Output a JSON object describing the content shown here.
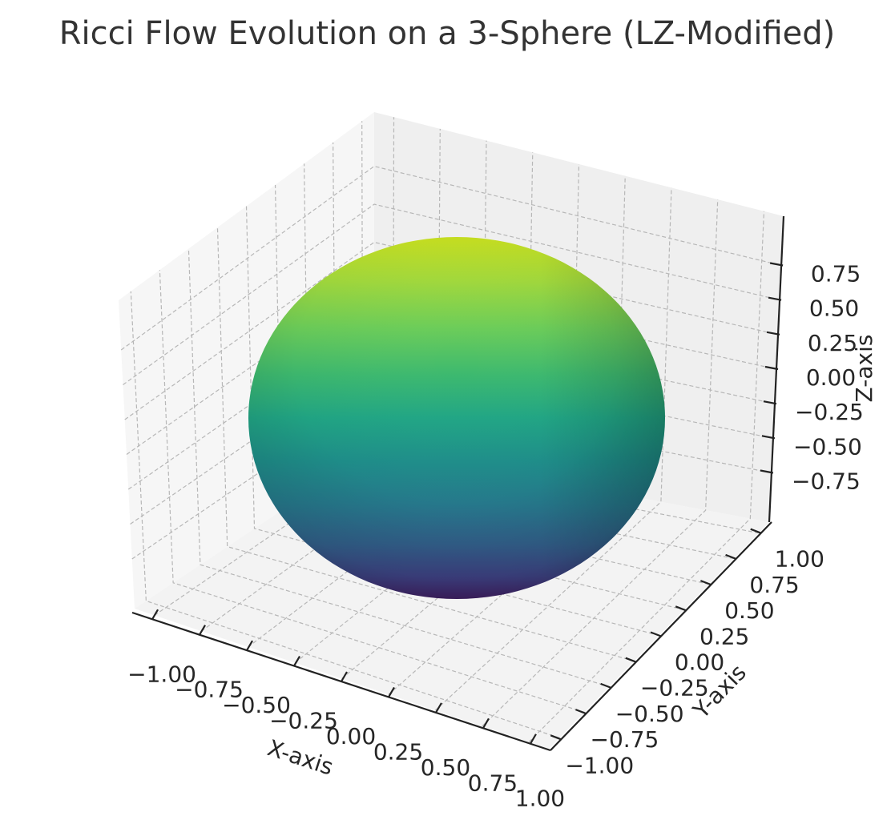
{
  "chart_data": {
    "type": "surface3d",
    "title": "Ricci Flow Evolution on a 3-Sphere (LZ-Modified)",
    "xlabel": "X-axis",
    "ylabel": "Y-axis",
    "zlabel": "Z-axis",
    "xlim": [
      -1.0,
      1.0
    ],
    "ylim": [
      -1.0,
      1.0
    ],
    "zlim": [
      -1.0,
      1.0
    ],
    "x_ticks": [
      "−1.00",
      "−0.75",
      "−0.50",
      "−0.25",
      "0.00",
      "0.25",
      "0.50",
      "0.75",
      "1.00"
    ],
    "y_ticks": [
      "−1.00",
      "−0.75",
      "−0.50",
      "−0.25",
      "0.00",
      "0.25",
      "0.50",
      "0.75",
      "1.00"
    ],
    "z_ticks": [
      "−0.75",
      "−0.50",
      "−0.25",
      "0.00",
      "0.25",
      "0.50",
      "0.75"
    ],
    "surface": {
      "shape": "sphere",
      "center": [
        0,
        0,
        0
      ],
      "radius": 1.0,
      "colormap": "viridis",
      "color_by": "z"
    },
    "grid": true,
    "pane_color": "#f2f2f2"
  }
}
